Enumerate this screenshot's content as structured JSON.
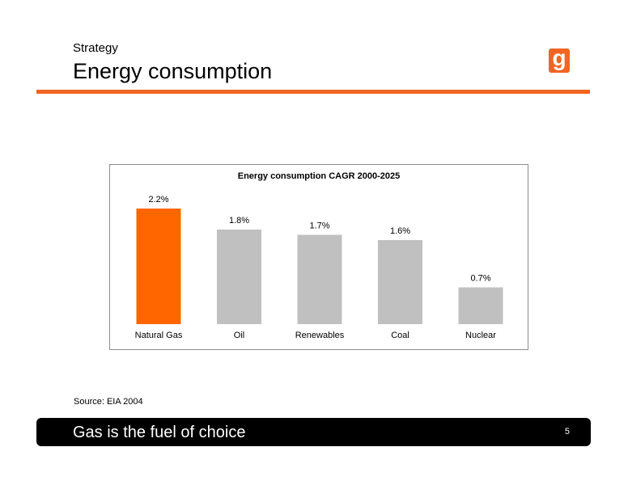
{
  "header": {
    "subtitle": "Strategy",
    "title": "Energy consumption",
    "logo_glyph": "g",
    "logo_color": "#f26522",
    "rule_color": "#f26522"
  },
  "chart_data": {
    "type": "bar",
    "title": "Energy consumption CAGR 2000-2025",
    "categories": [
      "Natural Gas",
      "Oil",
      "Renewables",
      "Coal",
      "Nuclear"
    ],
    "values": [
      2.2,
      1.8,
      1.7,
      1.6,
      0.7
    ],
    "value_labels": [
      "2.2%",
      "1.8%",
      "1.7%",
      "1.6%",
      "0.7%"
    ],
    "unit": "%",
    "colors": [
      "#ff6600",
      "#c0c0c0",
      "#c0c0c0",
      "#c0c0c0",
      "#c0c0c0"
    ],
    "xlabel": "",
    "ylabel": "",
    "ylim": [
      0,
      2.2
    ],
    "grid": false,
    "legend": "none"
  },
  "source": "Source: EIA 2004",
  "footer": {
    "text": "Gas is the fuel of choice",
    "page": "5"
  }
}
